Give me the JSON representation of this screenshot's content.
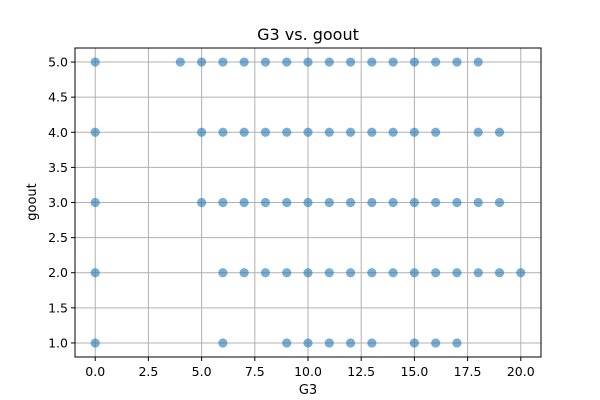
{
  "chart_data": {
    "type": "scatter",
    "title": "G3 vs. goout",
    "xlabel": "G3",
    "ylabel": "goout",
    "xlim": [
      -0.95,
      20.95
    ],
    "ylim": [
      0.8,
      5.2
    ],
    "x_ticks": [
      0,
      2.5,
      5,
      7.5,
      10,
      12.5,
      15,
      17.5,
      20
    ],
    "x_tick_labels": [
      "0.0",
      "2.5",
      "5.0",
      "7.5",
      "10.0",
      "12.5",
      "15.0",
      "17.5",
      "20.0"
    ],
    "y_ticks": [
      1,
      1.5,
      2,
      2.5,
      3,
      3.5,
      4,
      4.5,
      5
    ],
    "y_tick_labels": [
      "1.0",
      "1.5",
      "2.0",
      "2.5",
      "3.0",
      "3.5",
      "4.0",
      "4.5",
      "5.0"
    ],
    "grid": true,
    "color": "#1f77b4",
    "series": [
      {
        "name": "goout",
        "points": [
          [
            0,
            5
          ],
          [
            4,
            5
          ],
          [
            5,
            5
          ],
          [
            6,
            5
          ],
          [
            7,
            5
          ],
          [
            8,
            5
          ],
          [
            9,
            5
          ],
          [
            10,
            5
          ],
          [
            11,
            5
          ],
          [
            12,
            5
          ],
          [
            13,
            5
          ],
          [
            14,
            5
          ],
          [
            15,
            5
          ],
          [
            16,
            5
          ],
          [
            17,
            5
          ],
          [
            18,
            5
          ],
          [
            0,
            4
          ],
          [
            5,
            4
          ],
          [
            6,
            4
          ],
          [
            7,
            4
          ],
          [
            8,
            4
          ],
          [
            9,
            4
          ],
          [
            10,
            4
          ],
          [
            11,
            4
          ],
          [
            12,
            4
          ],
          [
            13,
            4
          ],
          [
            14,
            4
          ],
          [
            15,
            4
          ],
          [
            16,
            4
          ],
          [
            18,
            4
          ],
          [
            19,
            4
          ],
          [
            0,
            3
          ],
          [
            5,
            3
          ],
          [
            6,
            3
          ],
          [
            7,
            3
          ],
          [
            8,
            3
          ],
          [
            9,
            3
          ],
          [
            10,
            3
          ],
          [
            11,
            3
          ],
          [
            12,
            3
          ],
          [
            13,
            3
          ],
          [
            14,
            3
          ],
          [
            15,
            3
          ],
          [
            16,
            3
          ],
          [
            17,
            3
          ],
          [
            18,
            3
          ],
          [
            19,
            3
          ],
          [
            0,
            2
          ],
          [
            6,
            2
          ],
          [
            7,
            2
          ],
          [
            8,
            2
          ],
          [
            9,
            2
          ],
          [
            10,
            2
          ],
          [
            11,
            2
          ],
          [
            12,
            2
          ],
          [
            13,
            2
          ],
          [
            14,
            2
          ],
          [
            15,
            2
          ],
          [
            16,
            2
          ],
          [
            17,
            2
          ],
          [
            18,
            2
          ],
          [
            19,
            2
          ],
          [
            20,
            2
          ],
          [
            0,
            1
          ],
          [
            6,
            1
          ],
          [
            9,
            1
          ],
          [
            10,
            1
          ],
          [
            11,
            1
          ],
          [
            12,
            1
          ],
          [
            13,
            1
          ],
          [
            15,
            1
          ],
          [
            16,
            1
          ],
          [
            17,
            1
          ]
        ]
      }
    ]
  }
}
